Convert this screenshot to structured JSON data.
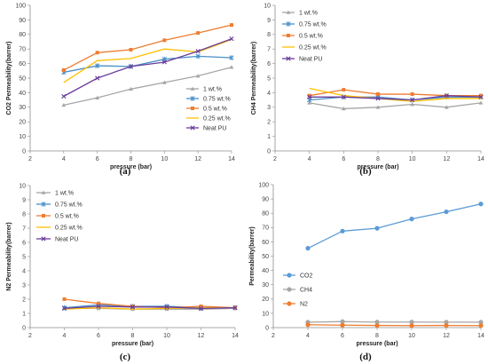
{
  "chart_data": [
    {
      "type": "line",
      "panel_label": "(a)",
      "xlabel": "pressure (bar)",
      "ylabel": "CO2 Permeability(barrer)",
      "xlim": [
        2,
        14
      ],
      "xticks": [
        2,
        4,
        6,
        8,
        10,
        12,
        14
      ],
      "ylim": [
        0,
        100
      ],
      "yticks": [
        0,
        10,
        20,
        30,
        40,
        50,
        60,
        70,
        80,
        90,
        100
      ],
      "grid": false,
      "legend_position": "bottom-right",
      "x": [
        4,
        6,
        8,
        10,
        12,
        14
      ],
      "series": [
        {
          "name": "1 wt.%",
          "color": "#a6a6a6",
          "marker": "triangle",
          "values": [
            31.5,
            36.5,
            42.5,
            47,
            51.5,
            57.5
          ]
        },
        {
          "name": "0.75 wt.%",
          "color": "#4a90c8",
          "marker": "star",
          "values": [
            54,
            58.5,
            58,
            63,
            65,
            64
          ]
        },
        {
          "name": "0.5 wt.%",
          "color": "#ed7d31",
          "marker": "square",
          "values": [
            55.5,
            67.5,
            69.5,
            76,
            81,
            86.5
          ]
        },
        {
          "name": "0.25 wt.%",
          "color": "#ffc000",
          "marker": "none",
          "values": [
            47,
            62,
            63.5,
            70,
            68,
            76.5
          ]
        },
        {
          "name": "Neat PU",
          "color": "#6a3d9a",
          "marker": "cross",
          "values": [
            37.5,
            50,
            58,
            61,
            68.5,
            77
          ]
        }
      ]
    },
    {
      "type": "line",
      "panel_label": "(b)",
      "xlabel": "pressure (bar)",
      "ylabel": "CH4 Permeability(barrer)",
      "xlim": [
        2,
        14
      ],
      "xticks": [
        2,
        4,
        6,
        8,
        10,
        12,
        14
      ],
      "ylim": [
        0,
        10
      ],
      "yticks": [
        0,
        1,
        2,
        3,
        4,
        5,
        6,
        7,
        8,
        9,
        10
      ],
      "grid": false,
      "legend_position": "top-left",
      "x": [
        4,
        6,
        8,
        10,
        12,
        14
      ],
      "series": [
        {
          "name": "1 wt.%",
          "color": "#a6a6a6",
          "marker": "triangle",
          "values": [
            3.3,
            2.9,
            3.0,
            3.2,
            3.0,
            3.3
          ]
        },
        {
          "name": "0.75 wt.%",
          "color": "#4a90c8",
          "marker": "star",
          "values": [
            3.5,
            3.7,
            3.7,
            3.5,
            3.7,
            3.7
          ]
        },
        {
          "name": "0.5 wt.%",
          "color": "#ed7d31",
          "marker": "square",
          "values": [
            3.8,
            4.2,
            3.9,
            3.9,
            3.8,
            3.8
          ]
        },
        {
          "name": "0.25 wt.%",
          "color": "#ffc000",
          "marker": "none",
          "values": [
            4.3,
            3.8,
            3.6,
            3.4,
            3.6,
            3.6
          ]
        },
        {
          "name": "Neat PU",
          "color": "#6a3d9a",
          "marker": "cross",
          "values": [
            3.7,
            3.7,
            3.6,
            3.5,
            3.8,
            3.7
          ]
        }
      ]
    },
    {
      "type": "line",
      "panel_label": "(c)",
      "xlabel": "pressure (bar)",
      "ylabel": "N2 Permeability(barrer)",
      "xlim": [
        2,
        14
      ],
      "xticks": [
        2,
        4,
        6,
        8,
        10,
        12,
        14
      ],
      "ylim": [
        0,
        10
      ],
      "yticks": [
        0,
        1,
        2,
        3,
        4,
        5,
        6,
        7,
        8,
        9,
        10
      ],
      "grid": false,
      "legend_position": "top-left",
      "x": [
        4,
        6,
        8,
        10,
        12,
        14
      ],
      "series": [
        {
          "name": "1 wt.%",
          "color": "#a6a6a6",
          "marker": "triangle",
          "values": [
            1.35,
            1.35,
            1.3,
            1.3,
            1.3,
            1.35
          ]
        },
        {
          "name": "0.75 wt.%",
          "color": "#4a90c8",
          "marker": "star",
          "values": [
            1.4,
            1.6,
            1.5,
            1.5,
            1.4,
            1.4
          ]
        },
        {
          "name": "0.5 wt.%",
          "color": "#ed7d31",
          "marker": "square",
          "values": [
            2.0,
            1.7,
            1.5,
            1.4,
            1.5,
            1.4
          ]
        },
        {
          "name": "0.25 wt.%",
          "color": "#ffc000",
          "marker": "none",
          "values": [
            1.3,
            1.4,
            1.3,
            1.35,
            1.4,
            1.4
          ]
        },
        {
          "name": "Neat PU",
          "color": "#6a3d9a",
          "marker": "cross",
          "values": [
            1.35,
            1.5,
            1.45,
            1.45,
            1.35,
            1.4
          ]
        }
      ]
    },
    {
      "type": "line",
      "panel_label": "(d)",
      "xlabel": "pressure (bar)",
      "ylabel": "Permeability(barrer)",
      "xlim": [
        2,
        14
      ],
      "xticks": [
        2,
        4,
        6,
        8,
        10,
        12,
        14
      ],
      "ylim": [
        0,
        100
      ],
      "yticks": [
        0,
        10,
        20,
        30,
        40,
        50,
        60,
        70,
        80,
        90,
        100
      ],
      "grid": false,
      "legend_position": "middle-left",
      "x": [
        4,
        6,
        8,
        10,
        12,
        14
      ],
      "series": [
        {
          "name": "CO2",
          "color": "#5b9bd5",
          "marker": "circle",
          "values": [
            55.5,
            67.5,
            69.5,
            76,
            81,
            86.5
          ]
        },
        {
          "name": "CH4",
          "color": "#a6a6a6",
          "marker": "circle",
          "values": [
            3.8,
            4.2,
            3.9,
            3.9,
            3.8,
            3.8
          ]
        },
        {
          "name": "N2",
          "color": "#ed7d31",
          "marker": "circle",
          "values": [
            2.0,
            1.7,
            1.5,
            1.4,
            1.5,
            1.4
          ]
        }
      ]
    }
  ]
}
